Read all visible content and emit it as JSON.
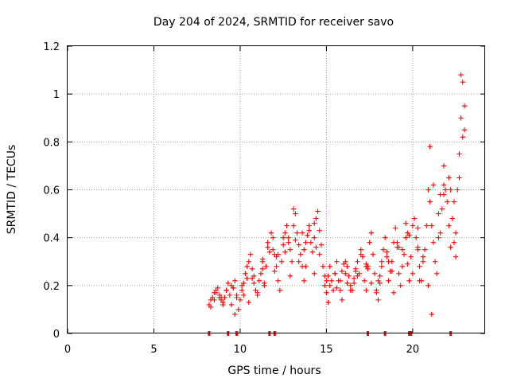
{
  "chart_data": {
    "type": "scatter",
    "title": "Day 204 of 2024, SRMTID for receiver savo",
    "xlabel": "GPS time / hours",
    "ylabel": "SRMTID / TECUs",
    "xlim": [
      0,
      24.2
    ],
    "ylim": [
      0,
      1.2
    ],
    "xticks": [
      0,
      5,
      10,
      15,
      20
    ],
    "xtick_labels": [
      "0",
      "5",
      "10",
      "15",
      "20"
    ],
    "yticks": [
      0,
      0.2,
      0.4,
      0.6,
      0.8,
      1.0,
      1.2
    ],
    "ytick_labels": [
      "0",
      "0.2",
      "0.4",
      "0.6",
      "0.8",
      "1",
      "1.2"
    ],
    "grid": true,
    "marker": "+",
    "color": "#ff0000",
    "series": [
      {
        "name": "SRMTID",
        "x": [
          8.2,
          8.3,
          8.4,
          8.5,
          8.6,
          8.7,
          8.8,
          8.9,
          9.0,
          9.1,
          9.2,
          9.3,
          9.4,
          9.5,
          9.6,
          9.7,
          9.8,
          9.9,
          10.0,
          10.1,
          10.2,
          10.3,
          10.4,
          10.5,
          10.6,
          10.7,
          10.8,
          10.9,
          11.0,
          11.1,
          11.2,
          11.3,
          11.4,
          11.5,
          11.6,
          11.7,
          11.8,
          11.9,
          12.0,
          12.1,
          12.2,
          12.3,
          12.4,
          12.5,
          12.6,
          12.7,
          12.8,
          12.9,
          13.0,
          13.1,
          13.2,
          13.3,
          13.4,
          13.5,
          13.6,
          13.7,
          13.8,
          13.9,
          14.0,
          14.1,
          14.2,
          14.3,
          14.4,
          14.5,
          14.6,
          14.7,
          14.8,
          14.9,
          15.0,
          15.1,
          15.2,
          15.3,
          15.4,
          15.5,
          15.6,
          15.7,
          15.8,
          15.9,
          16.0,
          16.1,
          16.2,
          16.3,
          16.4,
          16.5,
          16.6,
          16.7,
          16.8,
          16.9,
          17.0,
          17.1,
          17.2,
          17.3,
          17.4,
          17.5,
          17.6,
          17.7,
          17.8,
          17.9,
          18.0,
          18.1,
          18.2,
          18.3,
          18.4,
          18.5,
          18.6,
          18.7,
          18.8,
          18.9,
          19.0,
          19.1,
          19.2,
          19.3,
          19.4,
          19.5,
          19.6,
          19.7,
          19.8,
          19.9,
          20.0,
          20.1,
          20.2,
          20.3,
          20.4,
          20.5,
          20.6,
          20.7,
          20.8,
          20.9,
          21.0,
          21.1,
          21.2,
          21.3,
          21.4,
          21.5,
          21.6,
          21.7,
          21.8,
          21.9,
          22.0,
          22.1,
          22.2,
          22.3,
          22.4,
          22.5,
          22.6,
          22.7,
          22.8,
          22.9,
          23.0,
          8.3,
          8.6,
          8.9,
          9.2,
          9.5,
          9.8,
          10.1,
          10.4,
          10.7,
          11.0,
          11.3,
          11.6,
          11.9,
          12.2,
          12.5,
          12.8,
          13.1,
          13.4,
          13.7,
          14.0,
          14.3,
          14.6,
          14.9,
          15.2,
          15.5,
          15.8,
          16.1,
          16.4,
          16.7,
          17.0,
          17.3,
          17.6,
          17.9,
          18.2,
          18.5,
          18.8,
          19.1,
          19.4,
          19.7,
          20.0,
          20.3,
          20.6,
          20.9,
          21.2,
          21.5,
          21.8,
          22.1,
          22.4,
          22.7,
          23.0,
          8.5,
          9.0,
          9.6,
          10.2,
          10.8,
          11.4,
          12.0,
          12.6,
          13.2,
          13.8,
          14.4,
          15.0,
          15.6,
          16.2,
          16.8,
          17.4,
          18.0,
          18.6,
          19.2,
          19.8,
          20.4,
          21.0,
          21.6,
          22.2,
          22.8,
          8.8,
          9.7,
          10.5,
          11.3,
          12.1,
          12.9,
          13.6,
          14.3,
          15.1,
          15.9,
          16.6,
          17.3,
          18.1,
          18.9,
          19.6,
          20.3,
          21.1,
          21.8,
          22.5,
          22.9
        ],
        "y": [
          0.12,
          0.14,
          0.15,
          0.17,
          0.18,
          0.19,
          0.16,
          0.14,
          0.12,
          0.15,
          0.18,
          0.21,
          0.16,
          0.12,
          0.19,
          0.22,
          0.15,
          0.1,
          0.14,
          0.18,
          0.21,
          0.25,
          0.23,
          0.3,
          0.33,
          0.27,
          0.21,
          0.18,
          0.16,
          0.22,
          0.25,
          0.3,
          0.2,
          0.28,
          0.36,
          0.34,
          0.42,
          0.4,
          0.33,
          0.28,
          0.22,
          0.18,
          0.3,
          0.37,
          0.42,
          0.45,
          0.4,
          0.35,
          0.3,
          0.45,
          0.5,
          0.42,
          0.37,
          0.33,
          0.28,
          0.22,
          0.38,
          0.41,
          0.45,
          0.38,
          0.34,
          0.4,
          0.48,
          0.51,
          0.43,
          0.37,
          0.28,
          0.2,
          0.17,
          0.24,
          0.28,
          0.22,
          0.18,
          0.25,
          0.3,
          0.22,
          0.18,
          0.26,
          0.29,
          0.25,
          0.21,
          0.24,
          0.2,
          0.18,
          0.23,
          0.27,
          0.3,
          0.25,
          0.35,
          0.32,
          0.22,
          0.18,
          0.28,
          0.38,
          0.42,
          0.33,
          0.25,
          0.18,
          0.14,
          0.21,
          0.28,
          0.35,
          0.4,
          0.32,
          0.22,
          0.26,
          0.3,
          0.38,
          0.44,
          0.36,
          0.25,
          0.2,
          0.28,
          0.33,
          0.4,
          0.29,
          0.22,
          0.32,
          0.45,
          0.48,
          0.4,
          0.35,
          0.28,
          0.22,
          0.3,
          0.35,
          0.45,
          0.6,
          0.55,
          0.45,
          0.38,
          0.3,
          0.25,
          0.4,
          0.58,
          0.52,
          0.62,
          0.6,
          0.55,
          0.65,
          0.6,
          0.48,
          0.38,
          0.42,
          0.6,
          0.75,
          0.9,
          1.05,
          0.85,
          0.11,
          0.17,
          0.15,
          0.18,
          0.2,
          0.16,
          0.2,
          0.28,
          0.23,
          0.17,
          0.27,
          0.38,
          0.35,
          0.33,
          0.4,
          0.38,
          0.52,
          0.3,
          0.35,
          0.43,
          0.46,
          0.33,
          0.24,
          0.2,
          0.25,
          0.22,
          0.3,
          0.18,
          0.26,
          0.33,
          0.28,
          0.21,
          0.17,
          0.3,
          0.34,
          0.26,
          0.38,
          0.35,
          0.42,
          0.25,
          0.44,
          0.32,
          0.2,
          0.62,
          0.5,
          0.58,
          0.45,
          0.55,
          0.65,
          0.95,
          0.14,
          0.13,
          0.19,
          0.16,
          0.24,
          0.21,
          0.26,
          0.34,
          0.39,
          0.28,
          0.36,
          0.22,
          0.19,
          0.28,
          0.24,
          0.27,
          0.22,
          0.3,
          0.36,
          0.41,
          0.22,
          0.78,
          0.42,
          0.36,
          1.08,
          0.15,
          0.08,
          0.13,
          0.31,
          0.32,
          0.24,
          0.42,
          0.25,
          0.13,
          0.14,
          0.21,
          0.29,
          0.24,
          0.17,
          0.46,
          0.36,
          0.08,
          0.7,
          0.32,
          0.82
        ]
      }
    ],
    "rug_x": [
      8.2,
      9.3,
      9.8,
      11.7,
      12.0,
      17.4,
      18.4,
      19.8,
      19.9,
      22.2
    ]
  }
}
